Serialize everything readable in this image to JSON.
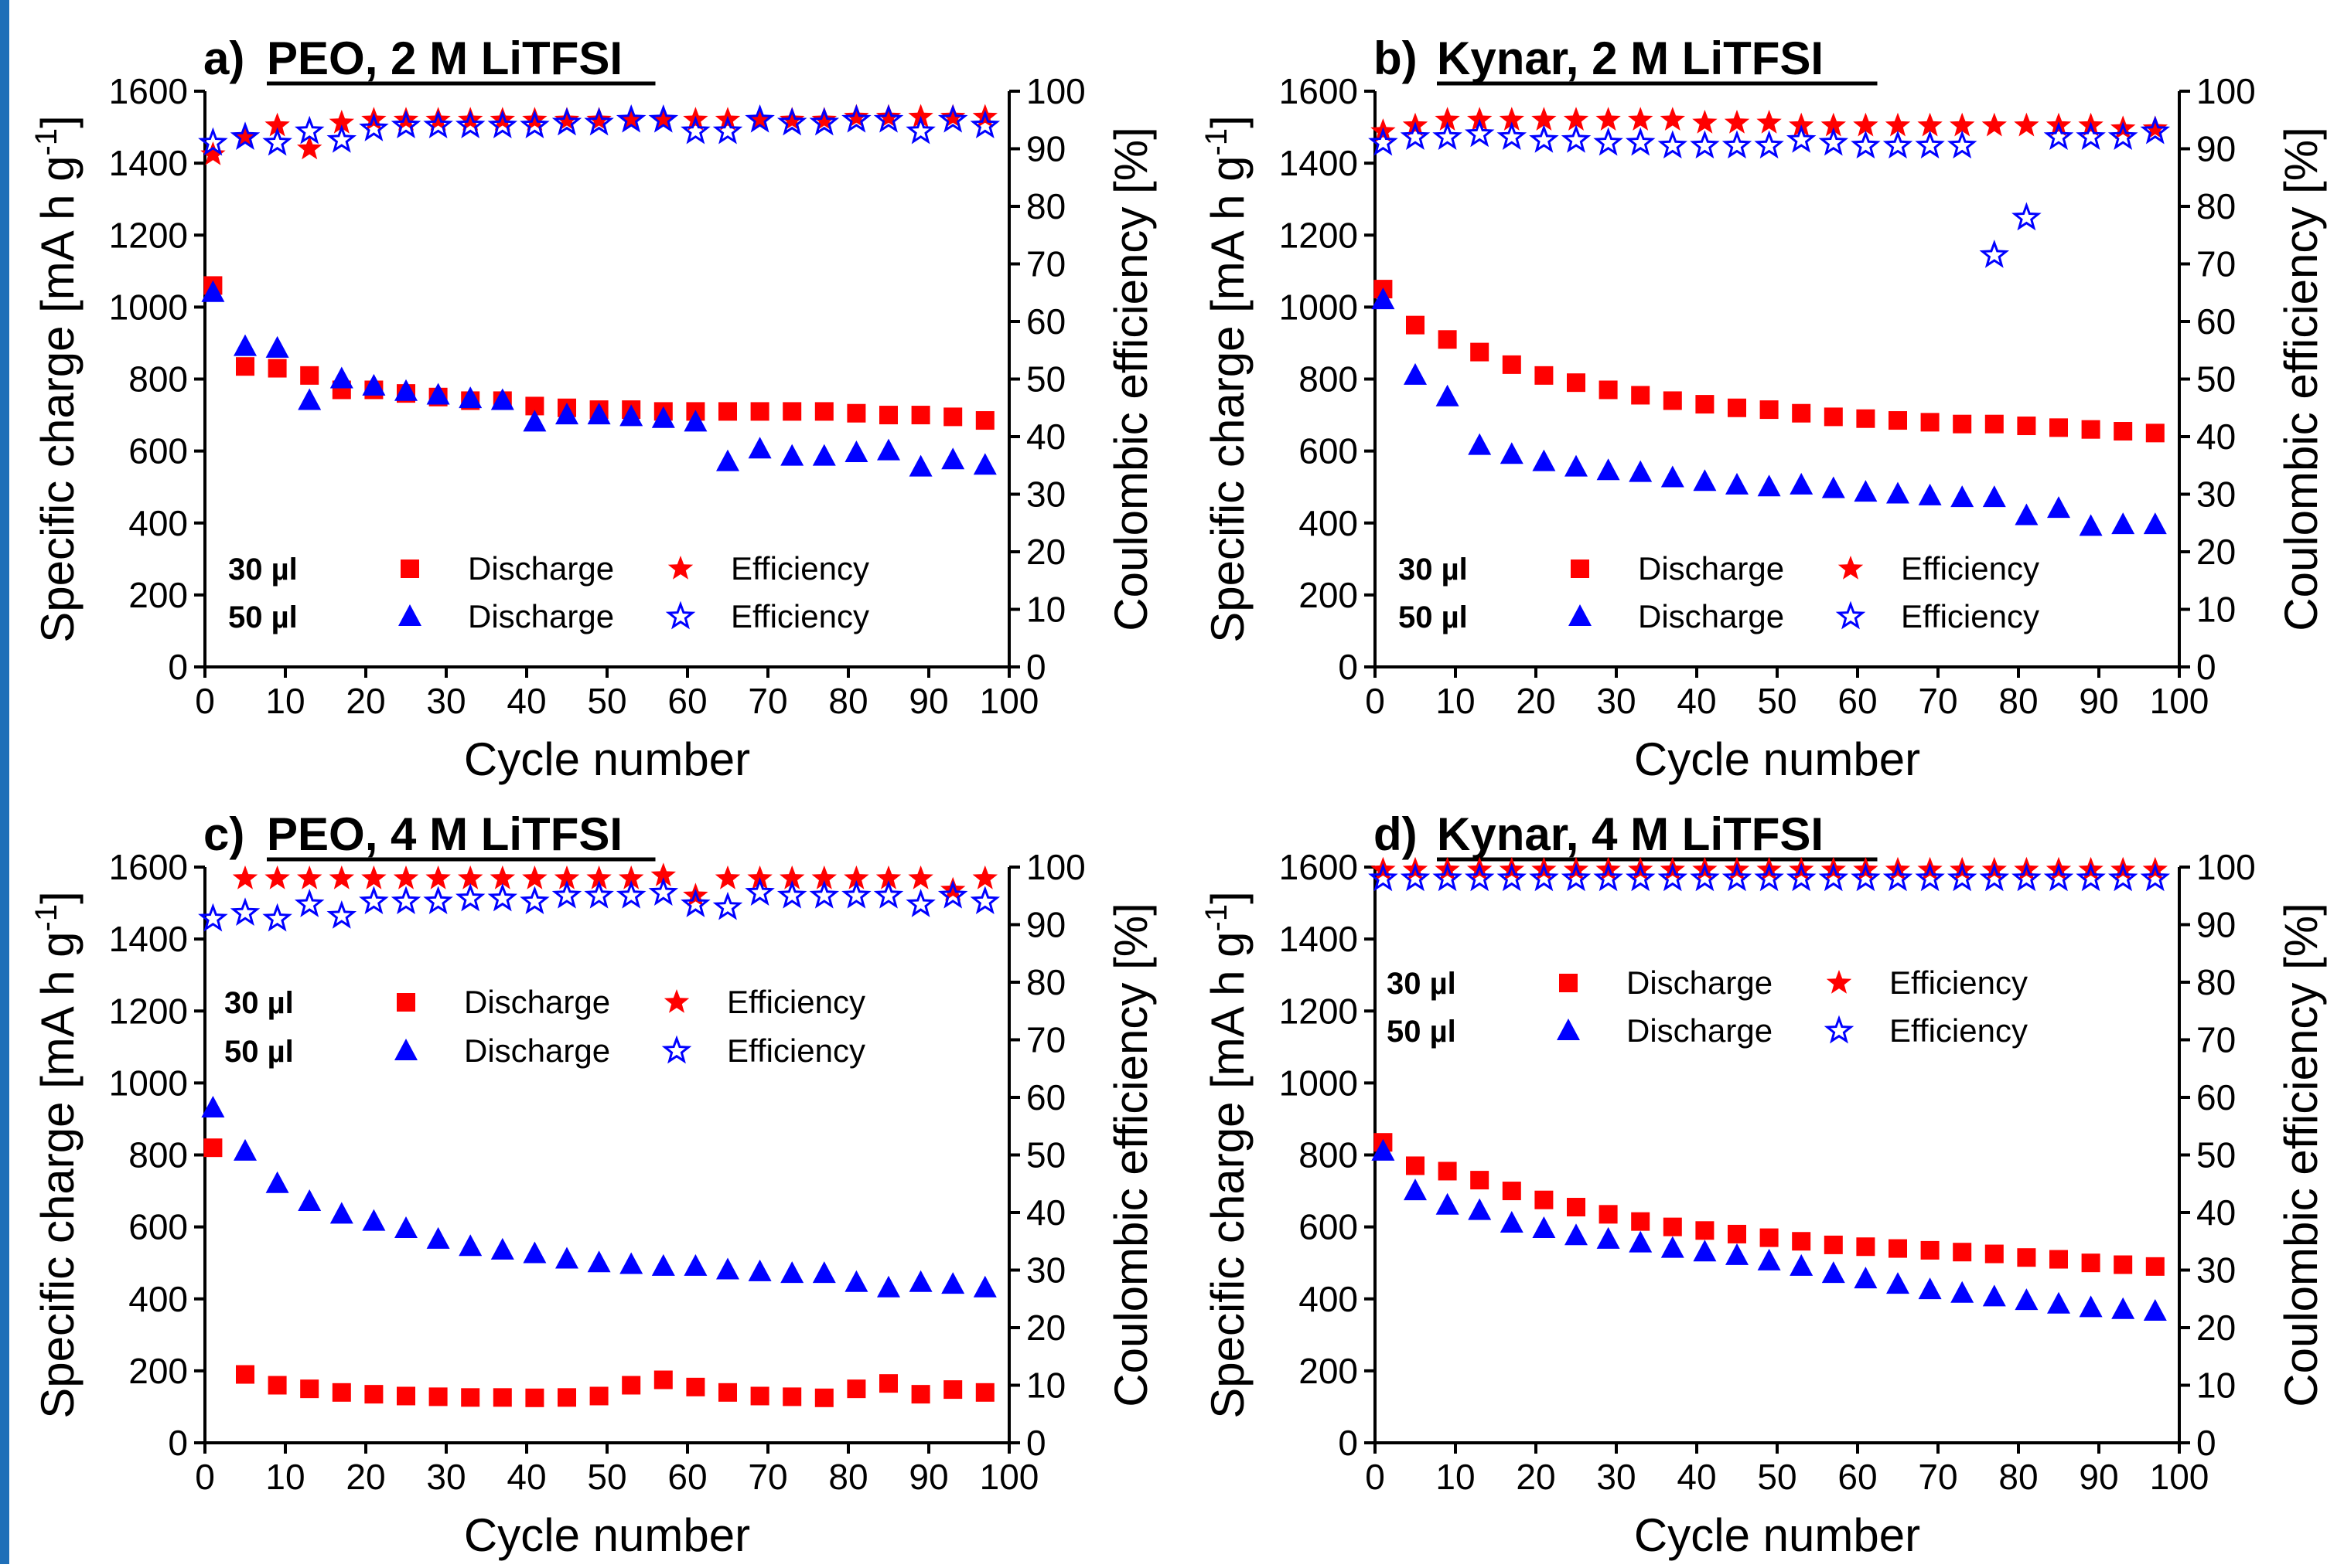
{
  "colors": {
    "red": "#ff0000",
    "blue": "#0000ff",
    "accent_bar": "#1f6fb8"
  },
  "legend": {
    "vol_30": "30 µl",
    "vol_50": "50 µl",
    "discharge": "Discharge",
    "efficiency": "Efficiency"
  },
  "chart_data": [
    {
      "type": "scatter",
      "title_prefix": "a)",
      "title": "PEO, 2 M LiTFSI",
      "xlabel": "Cycle number",
      "ylabel_left": "Specific charge [mA h g",
      "ylabel_left_sup": "-1",
      "ylabel_left_suffix": "]",
      "ylabel_right": "Coulombic efficiency [%]",
      "xlim": [
        0,
        100
      ],
      "ylim_left": [
        0,
        1600
      ],
      "ylim_right": [
        0,
        100
      ],
      "xticks": [
        0,
        10,
        20,
        30,
        40,
        50,
        60,
        70,
        80,
        90,
        100
      ],
      "yticks_left": [
        0,
        200,
        400,
        600,
        800,
        1000,
        1200,
        1400,
        1600
      ],
      "yticks_right": [
        0,
        10,
        20,
        30,
        40,
        50,
        60,
        70,
        80,
        90,
        100
      ],
      "legend_position": "lower-left",
      "x": [
        1,
        5,
        9,
        13,
        17,
        21,
        25,
        29,
        33,
        37,
        41,
        45,
        49,
        53,
        57,
        61,
        65,
        69,
        73,
        77,
        81,
        85,
        89,
        93,
        97
      ],
      "series": [
        {
          "name": "30 µl Discharge",
          "marker": "square",
          "color": "red",
          "axis": "left",
          "values": [
            1060,
            835,
            830,
            810,
            770,
            770,
            760,
            750,
            740,
            740,
            725,
            720,
            715,
            715,
            710,
            710,
            710,
            710,
            710,
            710,
            705,
            700,
            700,
            695,
            685
          ]
        },
        {
          "name": "50 µl Discharge",
          "marker": "triangle",
          "color": "blue",
          "axis": "left",
          "values": [
            1040,
            890,
            885,
            740,
            800,
            780,
            765,
            755,
            745,
            740,
            680,
            700,
            700,
            695,
            690,
            680,
            570,
            605,
            585,
            585,
            595,
            600,
            555,
            575,
            560
          ]
        },
        {
          "name": "30 µl Efficiency",
          "marker": "star-filled",
          "color": "red",
          "axis": "right",
          "values": [
            89,
            92,
            94,
            90,
            94.5,
            95,
            95,
            95,
            95,
            95,
            95,
            95,
            95,
            95,
            95,
            95,
            95,
            95,
            95,
            95,
            95.5,
            95.5,
            95.5,
            95.5,
            95.5
          ]
        },
        {
          "name": "50 µl Efficiency",
          "marker": "star-open",
          "color": "blue",
          "axis": "right",
          "values": [
            91,
            92,
            91,
            93,
            91.5,
            93.5,
            94,
            94,
            94,
            94,
            94,
            94.5,
            94.5,
            95,
            95,
            93,
            93,
            95,
            94.5,
            94.5,
            95,
            95,
            93,
            95,
            94
          ]
        }
      ]
    },
    {
      "type": "scatter",
      "title_prefix": "b)",
      "title": "Kynar, 2 M LiTFSI",
      "xlabel": "Cycle number",
      "ylabel_left": "Specific charge [mA h g",
      "ylabel_left_sup": "-1",
      "ylabel_left_suffix": "]",
      "ylabel_right": "Coulombic efficiency [%]",
      "xlim": [
        0,
        100
      ],
      "ylim_left": [
        0,
        1600
      ],
      "ylim_right": [
        0,
        100
      ],
      "xticks": [
        0,
        10,
        20,
        30,
        40,
        50,
        60,
        70,
        80,
        90,
        100
      ],
      "yticks_left": [
        0,
        200,
        400,
        600,
        800,
        1000,
        1200,
        1400,
        1600
      ],
      "yticks_right": [
        0,
        10,
        20,
        30,
        40,
        50,
        60,
        70,
        80,
        90,
        100
      ],
      "legend_position": "lower-left",
      "x": [
        1,
        5,
        9,
        13,
        17,
        21,
        25,
        29,
        33,
        37,
        41,
        45,
        49,
        53,
        57,
        61,
        65,
        69,
        73,
        77,
        81,
        85,
        89,
        93,
        97
      ],
      "series": [
        {
          "name": "30 µl Discharge",
          "marker": "square",
          "color": "red",
          "axis": "left",
          "values": [
            1050,
            950,
            910,
            875,
            840,
            810,
            790,
            770,
            755,
            740,
            730,
            720,
            715,
            705,
            695,
            690,
            685,
            680,
            675,
            675,
            670,
            665,
            660,
            655,
            650
          ]
        },
        {
          "name": "50 µl Discharge",
          "marker": "triangle",
          "color": "blue",
          "axis": "left",
          "values": [
            1020,
            810,
            750,
            615,
            590,
            570,
            555,
            545,
            540,
            525,
            515,
            505,
            500,
            505,
            495,
            485,
            480,
            475,
            470,
            470,
            420,
            440,
            390,
            395,
            395
          ]
        },
        {
          "name": "30 µl Efficiency",
          "marker": "star-filled",
          "color": "red",
          "axis": "right",
          "values": [
            93,
            94,
            95,
            95,
            95,
            95,
            95,
            95,
            95,
            95,
            94.5,
            94.5,
            94.5,
            94,
            94,
            94,
            94,
            94,
            94,
            94,
            94,
            94,
            94,
            93.5,
            93.5
          ]
        },
        {
          "name": "50 µl Efficiency",
          "marker": "star-open",
          "color": "blue",
          "axis": "right",
          "values": [
            91,
            92,
            92,
            92.5,
            92,
            91.5,
            91.5,
            91,
            91,
            90.5,
            90.5,
            90.5,
            90.5,
            91.5,
            91,
            90.5,
            90.5,
            90.5,
            90.5,
            71.5,
            78,
            92,
            92,
            92,
            93
          ]
        }
      ]
    },
    {
      "type": "scatter",
      "title_prefix": "c)",
      "title": "PEO, 4 M LiTFSI",
      "xlabel": "Cycle number",
      "ylabel_left": "Specific charge [mA h g",
      "ylabel_left_sup": "-1",
      "ylabel_left_suffix": "]",
      "ylabel_right": "Coulombic efficiency [%]",
      "xlim": [
        0,
        100
      ],
      "ylim_left": [
        0,
        1600
      ],
      "ylim_right": [
        0,
        100
      ],
      "xticks": [
        0,
        10,
        20,
        30,
        40,
        50,
        60,
        70,
        80,
        90,
        100
      ],
      "yticks_left": [
        0,
        200,
        400,
        600,
        800,
        1000,
        1200,
        1400,
        1600
      ],
      "yticks_right": [
        0,
        10,
        20,
        30,
        40,
        50,
        60,
        70,
        80,
        90,
        100
      ],
      "legend_position": "middle-left",
      "x": [
        1,
        5,
        9,
        13,
        17,
        21,
        25,
        29,
        33,
        37,
        41,
        45,
        49,
        53,
        57,
        61,
        65,
        69,
        73,
        77,
        81,
        85,
        89,
        93,
        97
      ],
      "series": [
        {
          "name": "30 µl Discharge",
          "marker": "square",
          "color": "red",
          "axis": "left",
          "values": [
            820,
            190,
            160,
            150,
            140,
            135,
            130,
            128,
            126,
            126,
            125,
            126,
            130,
            160,
            175,
            155,
            140,
            130,
            128,
            125,
            150,
            165,
            135,
            148,
            140
          ]
        },
        {
          "name": "50 µl Discharge",
          "marker": "triangle",
          "color": "blue",
          "axis": "left",
          "values": [
            930,
            810,
            720,
            670,
            635,
            615,
            595,
            565,
            545,
            535,
            525,
            510,
            500,
            495,
            490,
            490,
            480,
            475,
            470,
            470,
            445,
            430,
            445,
            440,
            430
          ]
        },
        {
          "name": "30 µl Efficiency",
          "marker": "star-filled",
          "color": "red",
          "axis": "right",
          "values": [
            null,
            98,
            98,
            98,
            98,
            98,
            98,
            98,
            98,
            98,
            98,
            98,
            98,
            98,
            98.5,
            95,
            98,
            98,
            98,
            98,
            98,
            98,
            98,
            96,
            98
          ]
        },
        {
          "name": "50 µl Efficiency",
          "marker": "star-open",
          "color": "blue",
          "axis": "right",
          "values": [
            91,
            92,
            91,
            93.5,
            91.5,
            94,
            94,
            94,
            94.5,
            94.5,
            94,
            95,
            95,
            95,
            95.5,
            93.5,
            93,
            95.5,
            95,
            95,
            95,
            95,
            93.5,
            95,
            94
          ]
        }
      ]
    },
    {
      "type": "scatter",
      "title_prefix": "d)",
      "title": "Kynar, 4 M LiTFSI",
      "xlabel": "Cycle number",
      "ylabel_left": "Specific charge [mA h g",
      "ylabel_left_sup": "-1",
      "ylabel_left_suffix": "]",
      "ylabel_right": "Coulombic efficiency [%]",
      "xlim": [
        0,
        100
      ],
      "ylim_left": [
        0,
        1600
      ],
      "ylim_right": [
        0,
        100
      ],
      "xticks": [
        0,
        10,
        20,
        30,
        40,
        50,
        60,
        70,
        80,
        90,
        100
      ],
      "yticks_left": [
        0,
        200,
        400,
        600,
        800,
        1000,
        1200,
        1400,
        1600
      ],
      "yticks_right": [
        0,
        10,
        20,
        30,
        40,
        50,
        60,
        70,
        80,
        90,
        100
      ],
      "legend_position": "upper-left",
      "x": [
        1,
        5,
        9,
        13,
        17,
        21,
        25,
        29,
        33,
        37,
        41,
        45,
        49,
        53,
        57,
        61,
        65,
        69,
        73,
        77,
        81,
        85,
        89,
        93,
        97
      ],
      "series": [
        {
          "name": "30 µl Discharge",
          "marker": "square",
          "color": "red",
          "axis": "left",
          "values": [
            835,
            770,
            755,
            730,
            700,
            675,
            655,
            635,
            615,
            600,
            590,
            580,
            570,
            560,
            550,
            545,
            540,
            535,
            530,
            525,
            515,
            510,
            500,
            495,
            490
          ]
        },
        {
          "name": "50 µl Discharge",
          "marker": "triangle",
          "color": "blue",
          "axis": "left",
          "values": [
            810,
            700,
            660,
            645,
            610,
            595,
            575,
            565,
            555,
            540,
            530,
            520,
            505,
            490,
            470,
            455,
            440,
            425,
            415,
            405,
            395,
            385,
            375,
            370,
            365
          ]
        },
        {
          "name": "30 µl Efficiency",
          "marker": "star-filled",
          "color": "red",
          "axis": "right",
          "values": [
            99.5,
            99.5,
            99.5,
            99.5,
            99.5,
            99.5,
            99.5,
            99.5,
            99.5,
            99.5,
            99.5,
            99.5,
            99.5,
            99.5,
            99.5,
            99.5,
            99.5,
            99.5,
            99.5,
            99.5,
            99.5,
            99.5,
            99.5,
            99.5,
            99.5
          ]
        },
        {
          "name": "50 µl Efficiency",
          "marker": "star-open",
          "color": "blue",
          "axis": "right",
          "values": [
            98,
            98,
            98,
            98,
            98,
            98,
            98,
            98,
            98,
            98,
            98,
            98,
            98,
            98,
            98,
            98,
            98,
            98,
            98,
            98,
            98,
            98,
            98,
            98,
            98
          ]
        }
      ]
    }
  ]
}
